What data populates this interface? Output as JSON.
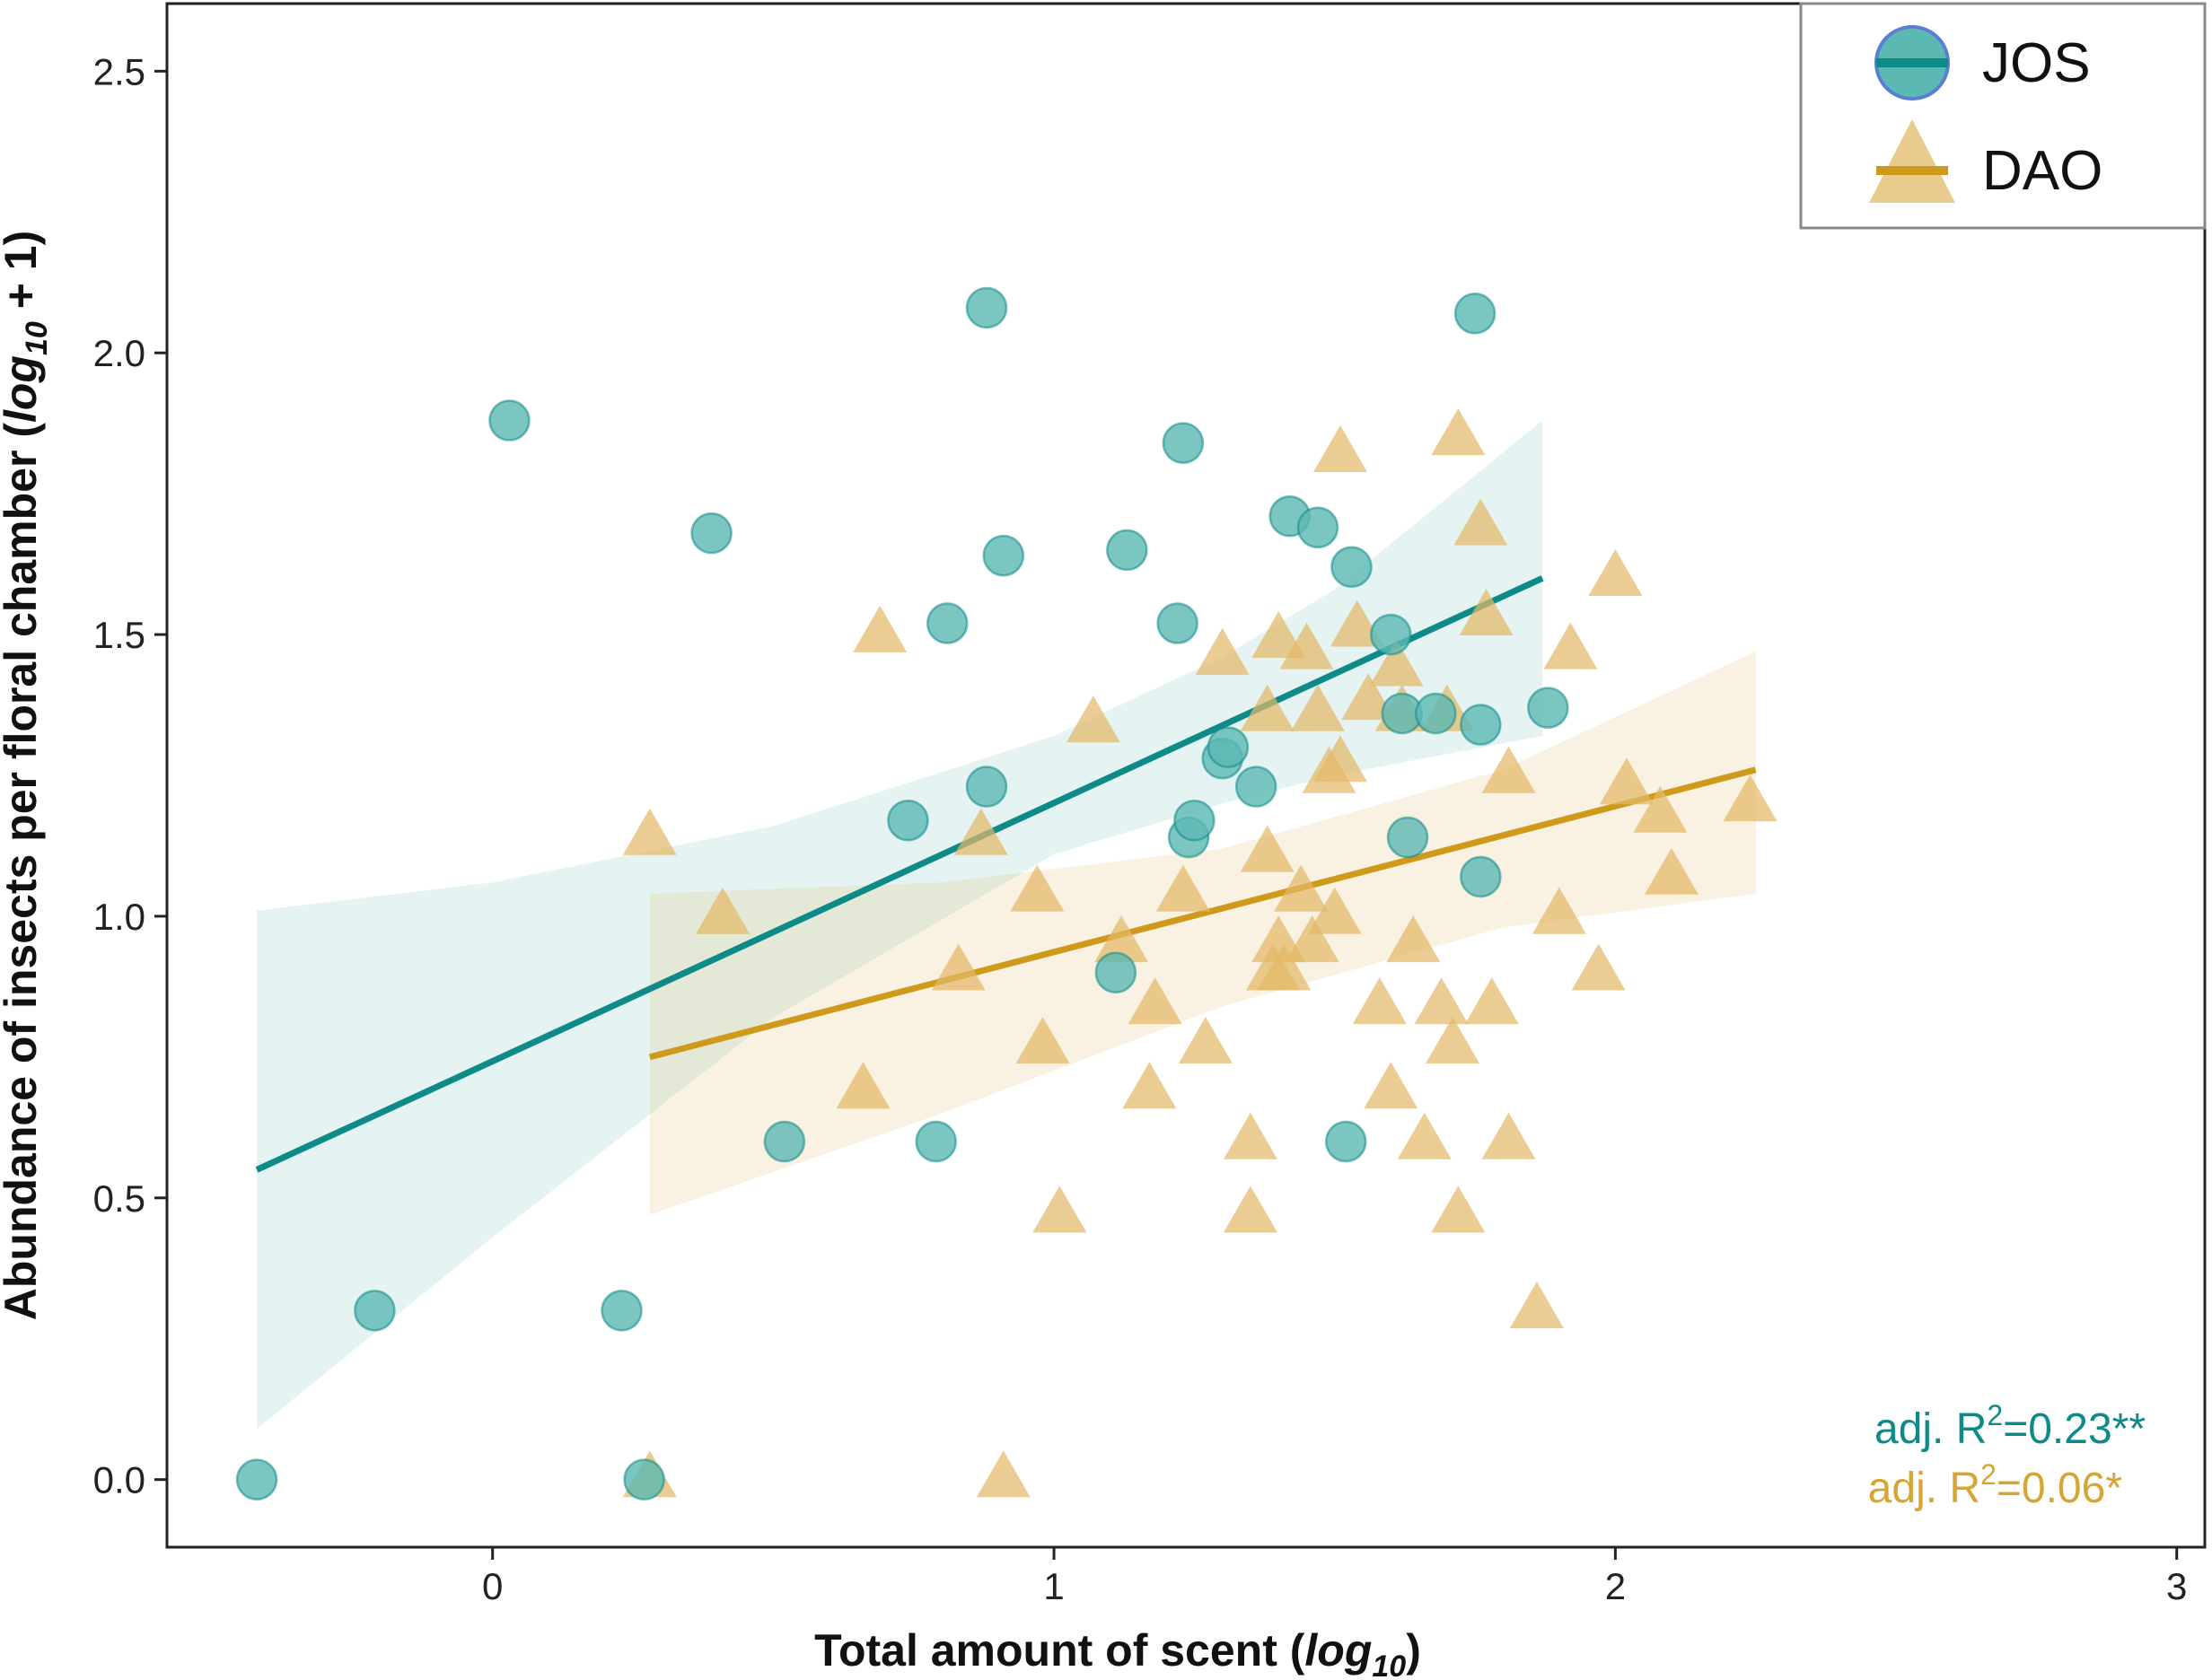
{
  "chart_data": {
    "type": "scatter",
    "xlabel": "Total amount of scent",
    "xlabel_unit": "log",
    "xlabel_unit_sub": "10",
    "ylabel": "Abundance of insects per floral chamber",
    "ylabel_unit": "log",
    "ylabel_unit_sub": "10",
    "ylabel_unit_suffix": " + 1)",
    "xlim": [
      -0.58,
      3.05
    ],
    "ylim": [
      -0.12,
      2.62
    ],
    "xticks": [
      0,
      1,
      2,
      3
    ],
    "xtick_labels": [
      "0",
      "1",
      "2",
      "3"
    ],
    "yticks": [
      0.0,
      0.5,
      1.0,
      1.5,
      2.0,
      2.5
    ],
    "ytick_labels": [
      "0.0",
      "0.5",
      "1.0",
      "1.5",
      "2.0",
      "2.5"
    ],
    "legend_position": "top-right",
    "series": [
      {
        "name": "JOS",
        "marker": "circle",
        "color": "#0e8a88",
        "fill": "#5bb8b3",
        "stat_prefix": "adj. R",
        "stat_sup": "2",
        "stat_suffix": "=0.23**",
        "fit": {
          "x": [
            -0.42,
            1.87
          ],
          "y": [
            0.55,
            1.6
          ]
        },
        "band": {
          "x": [
            -0.42,
            0.0,
            0.5,
            1.0,
            1.3,
            1.5,
            1.87
          ],
          "upper": [
            1.01,
            1.06,
            1.16,
            1.32,
            1.46,
            1.58,
            1.88
          ],
          "lower": [
            0.09,
            0.43,
            0.82,
            1.11,
            1.2,
            1.25,
            1.32
          ]
        },
        "points": [
          {
            "x": -0.42,
            "y": 0.0
          },
          {
            "x": -0.21,
            "y": 0.3
          },
          {
            "x": 0.03,
            "y": 1.88
          },
          {
            "x": 0.23,
            "y": 0.3
          },
          {
            "x": 0.27,
            "y": 0.0
          },
          {
            "x": 0.39,
            "y": 1.68
          },
          {
            "x": 0.52,
            "y": 0.6
          },
          {
            "x": 0.74,
            "y": 1.17
          },
          {
            "x": 0.79,
            "y": 0.6
          },
          {
            "x": 0.81,
            "y": 1.52
          },
          {
            "x": 0.88,
            "y": 2.08
          },
          {
            "x": 0.88,
            "y": 1.23
          },
          {
            "x": 0.91,
            "y": 1.64
          },
          {
            "x": 1.11,
            "y": 0.9
          },
          {
            "x": 1.13,
            "y": 1.65
          },
          {
            "x": 1.22,
            "y": 1.52
          },
          {
            "x": 1.23,
            "y": 1.84
          },
          {
            "x": 1.24,
            "y": 1.14
          },
          {
            "x": 1.25,
            "y": 1.17
          },
          {
            "x": 1.3,
            "y": 1.28
          },
          {
            "x": 1.31,
            "y": 1.3
          },
          {
            "x": 1.36,
            "y": 1.23
          },
          {
            "x": 1.42,
            "y": 1.71
          },
          {
            "x": 1.47,
            "y": 1.69
          },
          {
            "x": 1.52,
            "y": 0.6
          },
          {
            "x": 1.53,
            "y": 1.62
          },
          {
            "x": 1.6,
            "y": 1.5
          },
          {
            "x": 1.62,
            "y": 1.36
          },
          {
            "x": 1.63,
            "y": 1.14
          },
          {
            "x": 1.68,
            "y": 1.36
          },
          {
            "x": 1.75,
            "y": 2.07
          },
          {
            "x": 1.76,
            "y": 1.34
          },
          {
            "x": 1.76,
            "y": 1.07
          },
          {
            "x": 1.88,
            "y": 1.37
          }
        ]
      },
      {
        "name": "DAO",
        "marker": "triangle",
        "color": "#cf9a1c",
        "fill": "#e3b968",
        "stat_prefix": "adj. R",
        "stat_sup": "2",
        "stat_suffix": "=0.06*",
        "fit": {
          "x": [
            0.28,
            2.25
          ],
          "y": [
            0.75,
            1.26
          ]
        },
        "band": {
          "x": [
            0.28,
            0.8,
            1.3,
            1.8,
            2.25
          ],
          "upper": [
            1.04,
            1.06,
            1.12,
            1.26,
            1.47
          ],
          "lower": [
            0.47,
            0.65,
            0.84,
            0.98,
            1.04
          ]
        },
        "points": [
          {
            "x": 0.28,
            "y": 0.0
          },
          {
            "x": 0.28,
            "y": 1.14
          },
          {
            "x": 0.41,
            "y": 1.0
          },
          {
            "x": 0.66,
            "y": 0.69
          },
          {
            "x": 0.69,
            "y": 1.5
          },
          {
            "x": 0.83,
            "y": 0.9
          },
          {
            "x": 0.87,
            "y": 1.14
          },
          {
            "x": 0.91,
            "y": 0.0
          },
          {
            "x": 0.97,
            "y": 1.04
          },
          {
            "x": 0.98,
            "y": 0.77
          },
          {
            "x": 1.01,
            "y": 0.47
          },
          {
            "x": 1.07,
            "y": 1.34
          },
          {
            "x": 1.12,
            "y": 0.95
          },
          {
            "x": 1.17,
            "y": 0.69
          },
          {
            "x": 1.18,
            "y": 0.84
          },
          {
            "x": 1.23,
            "y": 1.04
          },
          {
            "x": 1.27,
            "y": 0.77
          },
          {
            "x": 1.3,
            "y": 1.46
          },
          {
            "x": 1.35,
            "y": 0.47
          },
          {
            "x": 1.35,
            "y": 0.6
          },
          {
            "x": 1.38,
            "y": 1.36
          },
          {
            "x": 1.38,
            "y": 1.11
          },
          {
            "x": 1.39,
            "y": 0.9
          },
          {
            "x": 1.4,
            "y": 1.49
          },
          {
            "x": 1.4,
            "y": 0.95
          },
          {
            "x": 1.41,
            "y": 0.9
          },
          {
            "x": 1.44,
            "y": 1.04
          },
          {
            "x": 1.45,
            "y": 1.47
          },
          {
            "x": 1.46,
            "y": 0.95
          },
          {
            "x": 1.47,
            "y": 1.36
          },
          {
            "x": 1.49,
            "y": 1.25
          },
          {
            "x": 1.5,
            "y": 1.0
          },
          {
            "x": 1.51,
            "y": 1.27
          },
          {
            "x": 1.51,
            "y": 1.82
          },
          {
            "x": 1.54,
            "y": 1.51
          },
          {
            "x": 1.56,
            "y": 1.38
          },
          {
            "x": 1.58,
            "y": 0.84
          },
          {
            "x": 1.6,
            "y": 0.69
          },
          {
            "x": 1.61,
            "y": 1.44
          },
          {
            "x": 1.62,
            "y": 1.36
          },
          {
            "x": 1.64,
            "y": 0.95
          },
          {
            "x": 1.66,
            "y": 0.6
          },
          {
            "x": 1.69,
            "y": 0.84
          },
          {
            "x": 1.7,
            "y": 1.36
          },
          {
            "x": 1.71,
            "y": 0.77
          },
          {
            "x": 1.72,
            "y": 0.47
          },
          {
            "x": 1.72,
            "y": 1.85
          },
          {
            "x": 1.76,
            "y": 1.69
          },
          {
            "x": 1.77,
            "y": 1.53
          },
          {
            "x": 1.78,
            "y": 0.84
          },
          {
            "x": 1.81,
            "y": 0.6
          },
          {
            "x": 1.81,
            "y": 1.25
          },
          {
            "x": 1.86,
            "y": 0.3
          },
          {
            "x": 1.9,
            "y": 1.0
          },
          {
            "x": 1.92,
            "y": 1.47
          },
          {
            "x": 1.97,
            "y": 0.9
          },
          {
            "x": 2.0,
            "y": 1.6
          },
          {
            "x": 2.02,
            "y": 1.23
          },
          {
            "x": 2.08,
            "y": 1.18
          },
          {
            "x": 2.1,
            "y": 1.07
          },
          {
            "x": 2.24,
            "y": 1.2
          }
        ]
      }
    ]
  }
}
